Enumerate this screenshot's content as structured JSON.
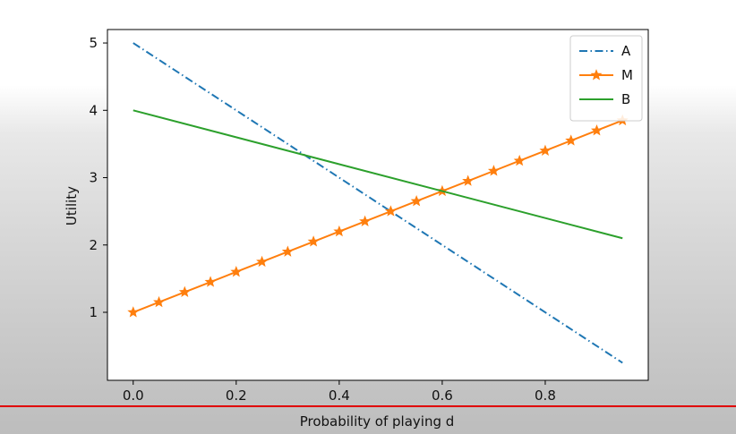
{
  "chart_data": {
    "type": "line",
    "xlabel": "Probability of playing d",
    "ylabel": "Utility",
    "xlim": [
      -0.05,
      1.0
    ],
    "ylim": [
      -0.01,
      5.2
    ],
    "xticks": [
      0.0,
      0.2,
      0.4,
      0.6,
      0.8
    ],
    "xtick_labels": [
      "0.0",
      "0.2",
      "0.4",
      "0.6",
      "0.8"
    ],
    "yticks": [
      1,
      2,
      3,
      4,
      5
    ],
    "ytick_labels": [
      "1",
      "2",
      "3",
      "4",
      "5"
    ],
    "grid": false,
    "legend_position": "top-right",
    "series": [
      {
        "name": "A",
        "color": "#1f77b4",
        "style": "dash-dot",
        "marker": "none",
        "x": [
          0.0,
          0.95
        ],
        "y": [
          5.0,
          0.25
        ]
      },
      {
        "name": "M",
        "color": "#ff7f0e",
        "style": "solid",
        "marker": "star",
        "x": [
          0.0,
          0.05,
          0.1,
          0.15,
          0.2,
          0.25,
          0.3,
          0.35,
          0.4,
          0.45,
          0.5,
          0.55,
          0.6,
          0.65,
          0.7,
          0.75,
          0.8,
          0.85,
          0.9,
          0.95
        ],
        "y": [
          1.0,
          1.15,
          1.3,
          1.45,
          1.6,
          1.75,
          1.9,
          2.05,
          2.2,
          2.35,
          2.5,
          2.65,
          2.8,
          2.95,
          3.1,
          3.25,
          3.4,
          3.55,
          3.7,
          3.85
        ]
      },
      {
        "name": "B",
        "color": "#2ca02c",
        "style": "solid",
        "marker": "none",
        "x": [
          0.0,
          0.95
        ],
        "y": [
          4.0,
          2.1
        ]
      }
    ]
  },
  "overlay": {
    "divider_color": "#e00000"
  }
}
